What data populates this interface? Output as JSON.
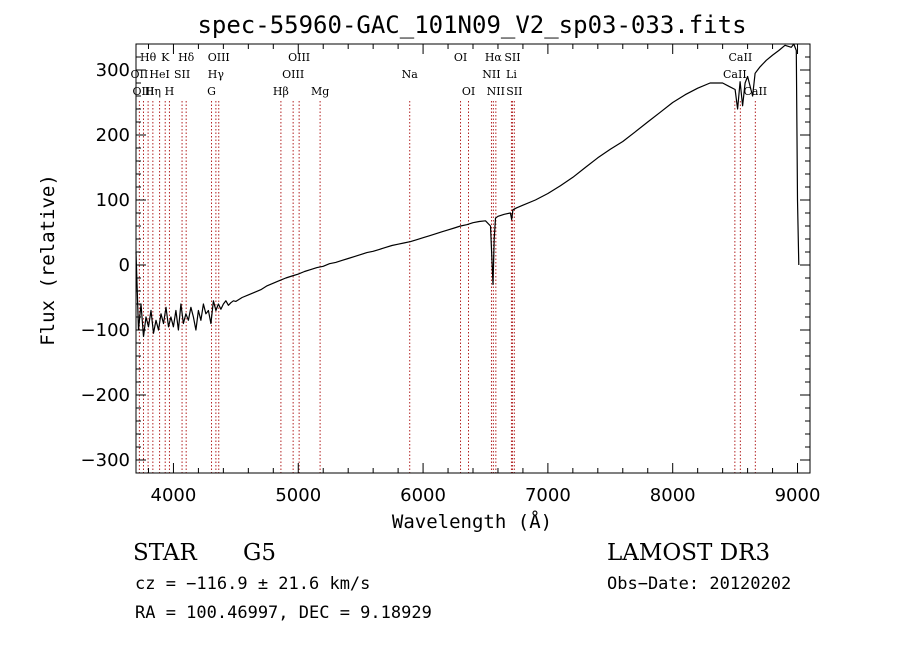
{
  "chart_data": {
    "type": "line",
    "title": "spec-55960-GAC_101N09_V2_sp03-033.fits",
    "xlabel": "Wavelength (Å)",
    "ylabel": "Flux (relative)",
    "xlim": [
      3700,
      9100
    ],
    "ylim": [
      -320,
      340
    ],
    "xticks": [
      4000,
      5000,
      6000,
      7000,
      8000,
      9000
    ],
    "yticks": [
      -300,
      -200,
      -100,
      0,
      100,
      200,
      300
    ],
    "grid": false,
    "series": [
      {
        "name": "flux",
        "color": "#000000",
        "x": [
          3700,
          3720,
          3740,
          3760,
          3780,
          3800,
          3820,
          3840,
          3860,
          3880,
          3900,
          3920,
          3940,
          3960,
          3980,
          4000,
          4020,
          4040,
          4060,
          4080,
          4100,
          4120,
          4140,
          4160,
          4180,
          4200,
          4220,
          4240,
          4260,
          4280,
          4300,
          4320,
          4340,
          4360,
          4380,
          4400,
          4420,
          4440,
          4460,
          4480,
          4500,
          4550,
          4600,
          4650,
          4700,
          4750,
          4800,
          4850,
          4900,
          4950,
          5000,
          5050,
          5100,
          5150,
          5200,
          5250,
          5300,
          5350,
          5400,
          5450,
          5500,
          5550,
          5600,
          5650,
          5700,
          5750,
          5800,
          5850,
          5900,
          5950,
          6000,
          6050,
          6100,
          6150,
          6200,
          6250,
          6300,
          6350,
          6400,
          6450,
          6500,
          6540,
          6560,
          6570,
          6580,
          6600,
          6650,
          6700,
          6710,
          6720,
          6750,
          6800,
          6900,
          7000,
          7100,
          7200,
          7300,
          7400,
          7500,
          7600,
          7700,
          7800,
          7900,
          8000,
          8100,
          8200,
          8300,
          8400,
          8450,
          8500,
          8520,
          8540,
          8560,
          8580,
          8600,
          8640,
          8660,
          8680,
          8700,
          8750,
          8800,
          8850,
          8900,
          8950,
          8970,
          8990,
          9000,
          9010
        ],
        "y": [
          20,
          -100,
          -60,
          -110,
          -80,
          -95,
          -70,
          -105,
          -85,
          -100,
          -75,
          -90,
          -65,
          -95,
          -80,
          -95,
          -70,
          -100,
          -60,
          -90,
          -75,
          -85,
          -65,
          -80,
          -100,
          -70,
          -85,
          -60,
          -75,
          -70,
          -90,
          -55,
          -70,
          -60,
          -68,
          -60,
          -55,
          -62,
          -58,
          -55,
          -56,
          -50,
          -46,
          -42,
          -38,
          -32,
          -28,
          -24,
          -20,
          -17,
          -14,
          -10,
          -7,
          -4,
          -2,
          2,
          4,
          7,
          10,
          13,
          16,
          19,
          21,
          24,
          27,
          30,
          32,
          34,
          36,
          39,
          42,
          45,
          48,
          51,
          54,
          57,
          60,
          62,
          65,
          67,
          68,
          60,
          -30,
          40,
          72,
          75,
          78,
          80,
          70,
          85,
          88,
          92,
          100,
          110,
          122,
          135,
          150,
          165,
          178,
          190,
          205,
          220,
          235,
          250,
          262,
          272,
          280,
          280,
          275,
          270,
          240,
          282,
          245,
          280,
          290,
          260,
          295,
          300,
          305,
          315,
          323,
          330,
          338,
          335,
          340,
          330,
          100,
          0
        ]
      }
    ],
    "line_labels": [
      {
        "label": "Hθ",
        "x": 3797,
        "row": 1
      },
      {
        "label": "K",
        "x": 3934,
        "row": 1
      },
      {
        "label": "Hδ",
        "x": 4102,
        "row": 1
      },
      {
        "label": "OIII",
        "x": 4363,
        "row": 1
      },
      {
        "label": "OIII",
        "x": 5007,
        "row": 1
      },
      {
        "label": "OI",
        "x": 6300,
        "row": 1
      },
      {
        "label": "Hα",
        "x": 6563,
        "row": 1
      },
      {
        "label": "SII",
        "x": 6716,
        "row": 1
      },
      {
        "label": "CaII",
        "x": 8542,
        "row": 1
      },
      {
        "label": "OII",
        "x": 3727,
        "row": 2
      },
      {
        "label": "HeI",
        "x": 3889,
        "row": 2
      },
      {
        "label": "SII",
        "x": 4069,
        "row": 2
      },
      {
        "label": "Hγ",
        "x": 4340,
        "row": 2
      },
      {
        "label": "OIII",
        "x": 4959,
        "row": 2
      },
      {
        "label": "Na",
        "x": 5893,
        "row": 2
      },
      {
        "label": "NII",
        "x": 6548,
        "row": 2
      },
      {
        "label": "Li",
        "x": 6708,
        "row": 2
      },
      {
        "label": "CaII",
        "x": 8498,
        "row": 2
      },
      {
        "label": "OIII",
        "x": 3760,
        "row": 3
      },
      {
        "label": "Hη",
        "x": 3835,
        "row": 3
      },
      {
        "label": "H",
        "x": 3968,
        "row": 3
      },
      {
        "label": "G",
        "x": 4305,
        "row": 3
      },
      {
        "label": "Hβ",
        "x": 4861,
        "row": 3
      },
      {
        "label": "Mg",
        "x": 5175,
        "row": 3
      },
      {
        "label": "OI",
        "x": 6364,
        "row": 3
      },
      {
        "label": "NII",
        "x": 6583,
        "row": 3
      },
      {
        "label": "SII",
        "x": 6731,
        "row": 3
      },
      {
        "label": "CaII",
        "x": 8662,
        "row": 3
      }
    ],
    "line_color": "#b22222"
  },
  "info": {
    "object_class": "STAR",
    "subclass": "G5",
    "survey": "LAMOST DR3",
    "redshift": "cz = −116.9 ± 21.6 km/s",
    "obs_date": "Obs−Date: 20120202",
    "coords": "RA = 100.46997, DEC =   9.18929"
  }
}
